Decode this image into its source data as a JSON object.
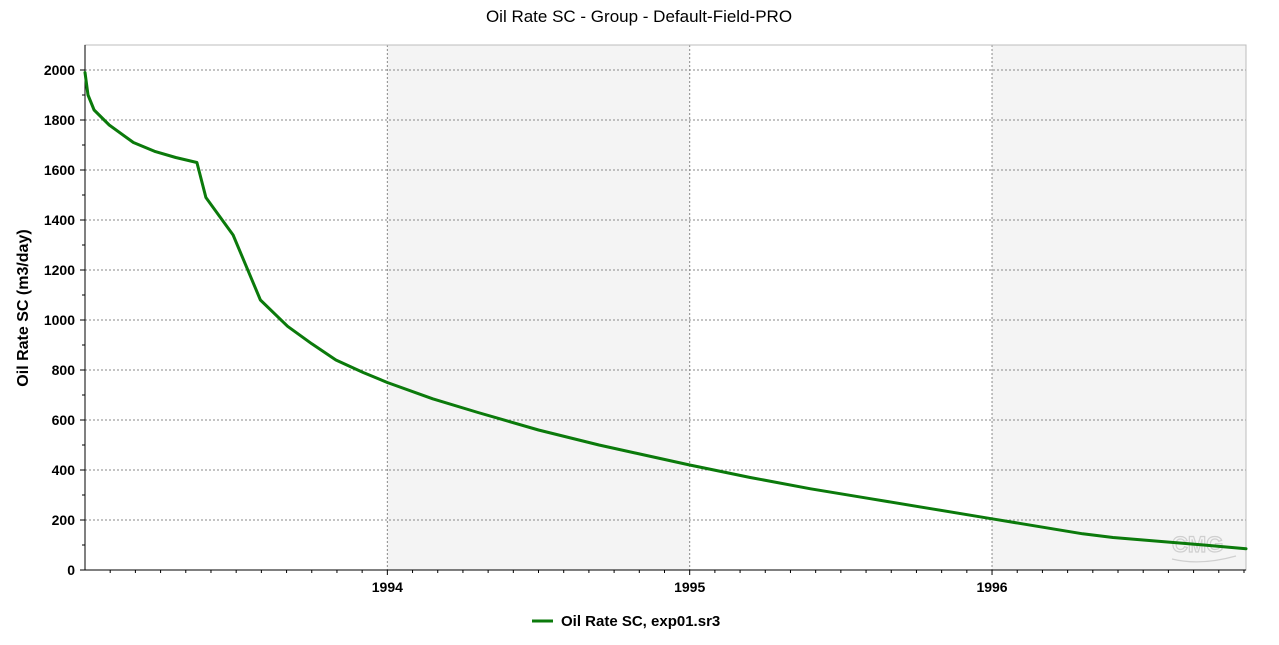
{
  "chart_data": {
    "type": "line",
    "title": "Oil Rate SC - Group - Default-Field-PRO",
    "xlabel": "",
    "ylabel": "Oil Rate SC (m3/day)",
    "xlim": [
      1993.0,
      1996.84
    ],
    "ylim": [
      0,
      2100
    ],
    "x_ticks": [
      1994,
      1995,
      1996
    ],
    "y_ticks": [
      0,
      200,
      400,
      600,
      800,
      1000,
      1200,
      1400,
      1600,
      1800,
      2000
    ],
    "x_tick_labels": [
      "1994",
      "1995",
      "1996"
    ],
    "y_tick_labels": [
      "0",
      "200",
      "400",
      "600",
      "800",
      "1000",
      "1200",
      "1400",
      "1600",
      "1800",
      "2000"
    ],
    "grid": true,
    "legend_position": "bottom-center",
    "series": [
      {
        "name": "Oil Rate SC, exp01.sr3",
        "color": "#0b7a0b",
        "x": [
          1993.0,
          1993.01,
          1993.03,
          1993.08,
          1993.16,
          1993.23,
          1993.3,
          1993.37,
          1993.4,
          1993.49,
          1993.58,
          1993.67,
          1993.75,
          1993.83,
          1993.92,
          1994.0,
          1994.15,
          1994.3,
          1994.5,
          1994.7,
          1994.85,
          1995.0,
          1995.2,
          1995.4,
          1995.6,
          1995.8,
          1996.0,
          1996.1,
          1996.2,
          1996.3,
          1996.4,
          1996.5,
          1996.6,
          1996.7,
          1996.84
        ],
        "y": [
          1990,
          1900,
          1840,
          1780,
          1710,
          1675,
          1650,
          1630,
          1490,
          1340,
          1080,
          975,
          905,
          840,
          790,
          750,
          685,
          630,
          560,
          500,
          460,
          420,
          370,
          325,
          285,
          245,
          205,
          185,
          165,
          145,
          130,
          120,
          110,
          100,
          85
        ]
      }
    ]
  }
}
